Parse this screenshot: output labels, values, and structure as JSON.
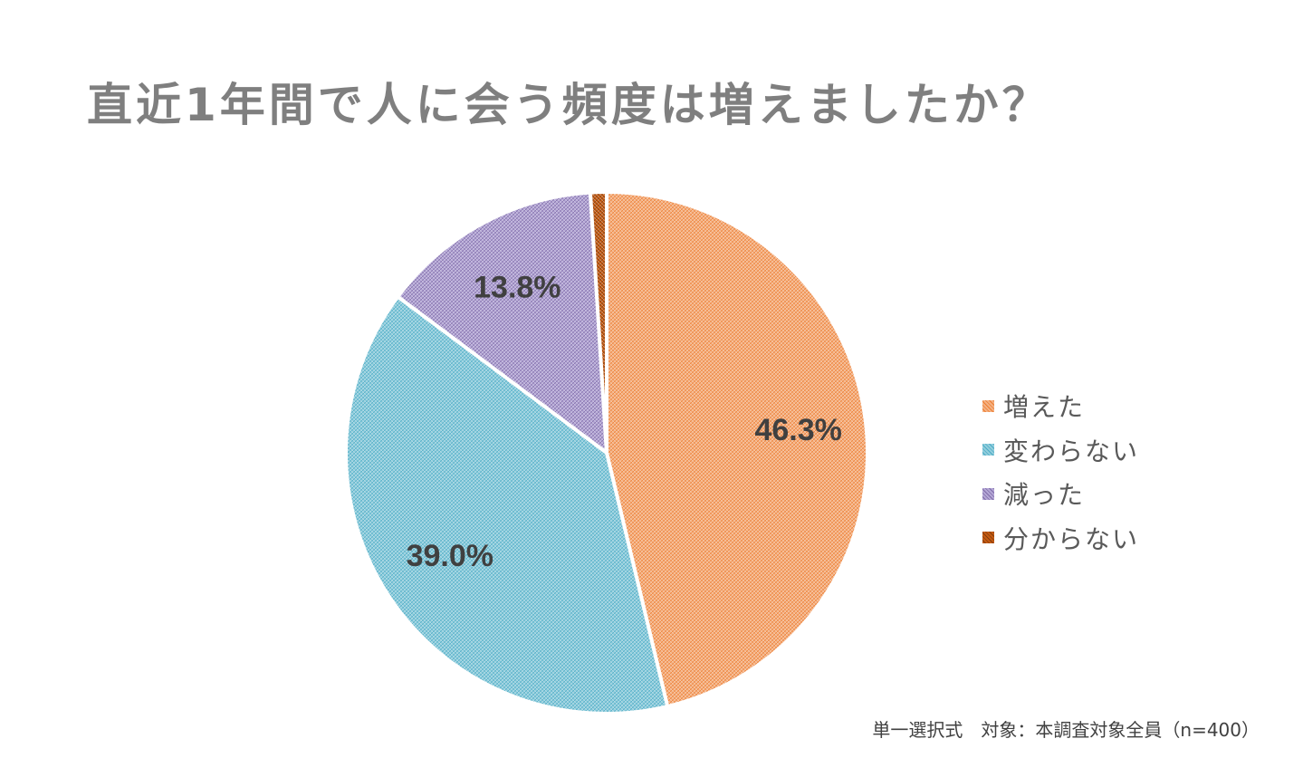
{
  "title": "直近1年間で人に会う頻度は増えましたか？",
  "footnote": "単一選択式　対象：本調査対象全員（n=400）",
  "chart_data": {
    "type": "pie",
    "title": "直近1年間で人に会う頻度は増えましたか？",
    "categories": [
      "増えた",
      "変わらない",
      "減った",
      "分からない"
    ],
    "values": [
      46.3,
      39.0,
      13.8,
      1.0
    ],
    "labels": [
      "46.3%",
      "39.0%",
      "13.8%",
      ""
    ],
    "colors": [
      "#f4b183",
      "#92cddc",
      "#b4a7d6",
      "#c55a11"
    ],
    "hatch_colors": [
      "#ed7d31",
      "#4bacc6",
      "#7f6ba8",
      "#843c0c"
    ],
    "legend_position": "right",
    "start_angle": "12 o'clock",
    "direction": "clockwise"
  }
}
